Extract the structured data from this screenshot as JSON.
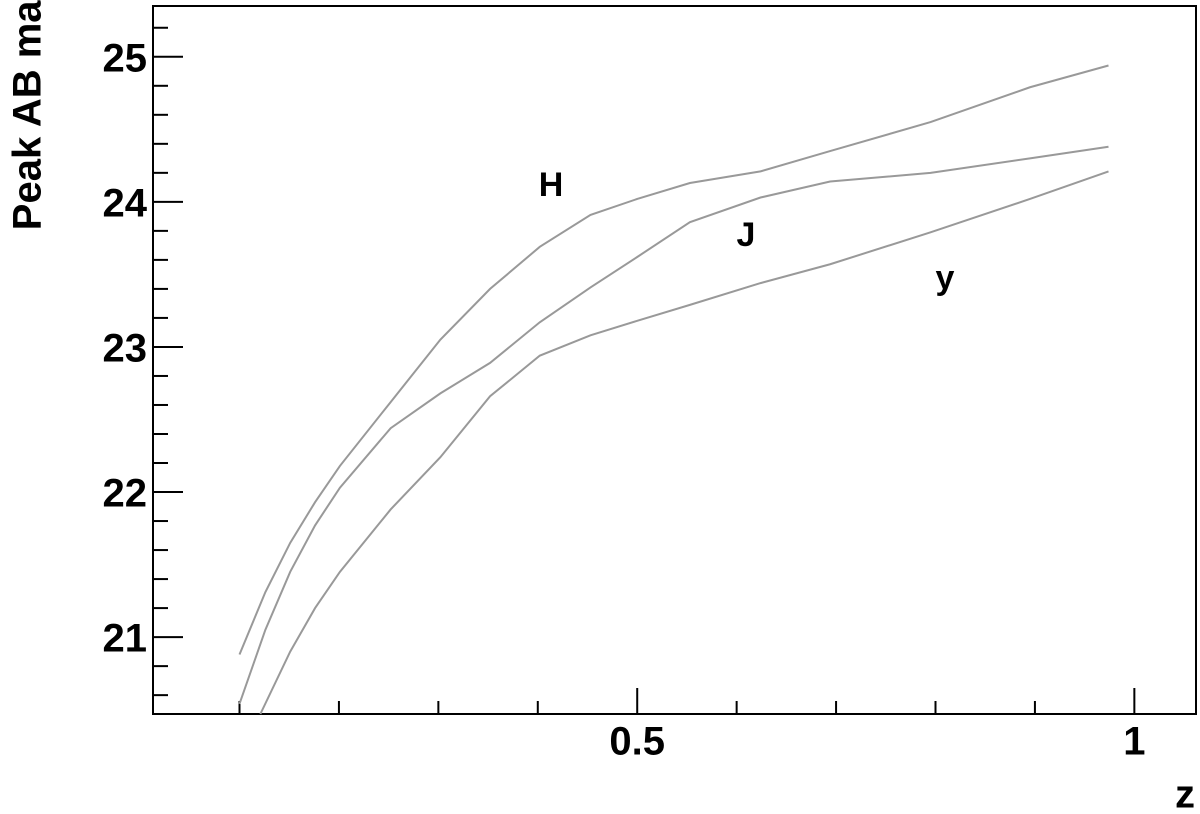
{
  "chart_data": {
    "type": "line",
    "xlabel": "z",
    "ylabel": "Peak AB mag",
    "xlim": [
      0.013,
      1.062
    ],
    "ylim": [
      20.47,
      25.35
    ],
    "xticks": [
      0.5,
      1
    ],
    "yticks": [
      21,
      22,
      23,
      24,
      25
    ],
    "xminorticks": [
      0.1,
      0.2,
      0.3,
      0.4,
      0.6,
      0.7,
      0.8,
      0.9
    ],
    "yminorticks": [
      20.6,
      20.8,
      21.2,
      21.4,
      21.6,
      21.8,
      22.2,
      22.4,
      22.6,
      22.8,
      23.2,
      23.4,
      23.6,
      23.8,
      24.2,
      24.4,
      24.6,
      24.8,
      25.2
    ],
    "annotations": [
      "H",
      "J",
      "y"
    ],
    "series": [
      {
        "color": "#999999",
        "x": [
          0.1,
          0.126,
          0.151,
          0.176,
          0.201,
          0.252,
          0.302,
          0.352,
          0.402,
          0.453,
          0.5,
          0.553,
          0.624,
          0.694,
          0.795,
          0.895,
          0.974
        ],
        "values": [
          20.88,
          21.31,
          21.65,
          21.93,
          22.18,
          22.62,
          23.05,
          23.4,
          23.69,
          23.91,
          24.02,
          24.13,
          24.21,
          24.35,
          24.55,
          24.79,
          24.94
        ]
      },
      {
        "color": "#999999",
        "x": [
          0.1,
          0.126,
          0.151,
          0.176,
          0.201,
          0.252,
          0.302,
          0.352,
          0.402,
          0.453,
          0.5,
          0.553,
          0.624,
          0.694,
          0.795,
          0.895,
          0.974
        ],
        "values": [
          20.54,
          21.05,
          21.45,
          21.77,
          22.03,
          22.44,
          22.68,
          22.89,
          23.17,
          23.41,
          23.62,
          23.86,
          24.03,
          24.14,
          24.2,
          24.3,
          24.38
        ]
      },
      {
        "color": "#999999",
        "x": [
          0.121,
          0.151,
          0.176,
          0.201,
          0.252,
          0.302,
          0.352,
          0.402,
          0.453,
          0.5,
          0.553,
          0.624,
          0.694,
          0.795,
          0.895,
          0.974
        ],
        "values": [
          20.47,
          20.9,
          21.2,
          21.45,
          21.88,
          22.24,
          22.66,
          22.94,
          23.08,
          23.18,
          23.29,
          23.44,
          23.57,
          23.79,
          24.02,
          24.21
        ]
      }
    ]
  }
}
